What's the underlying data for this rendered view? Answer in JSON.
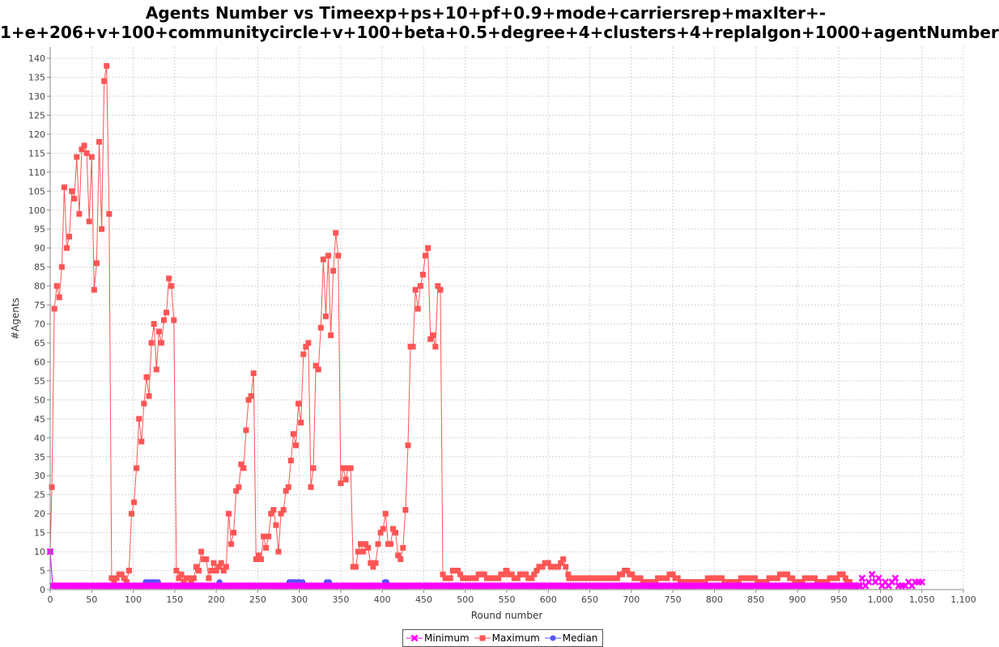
{
  "chart_data": {
    "type": "line",
    "title_line1": "Agents Number vs Timeexp+ps+10+pf+0.9+mode+carriersrep+maxIter+-",
    "title_line2": "1+e+206+v+100+communitycircle+v+100+beta+0.5+degree+4+clusters+4+replalgon+1000+agentNumber",
    "xlabel": "Round number",
    "ylabel": "#Agents",
    "xlim": [
      0,
      1100
    ],
    "ylim": [
      0,
      143
    ],
    "xticks": [
      0,
      50,
      100,
      150,
      200,
      250,
      300,
      350,
      400,
      450,
      500,
      550,
      600,
      650,
      700,
      750,
      800,
      850,
      900,
      950,
      1000,
      1050,
      1100
    ],
    "xtick_labels": [
      "0",
      "50",
      "100",
      "150",
      "200",
      "250",
      "300",
      "350",
      "400",
      "450",
      "500",
      "550",
      "600",
      "650",
      "700",
      "750",
      "800",
      "850",
      "900",
      "950",
      "1,000",
      "1,050",
      "1,100"
    ],
    "yticks": [
      0,
      5,
      10,
      15,
      20,
      25,
      30,
      35,
      40,
      45,
      50,
      55,
      60,
      65,
      70,
      75,
      80,
      85,
      90,
      95,
      100,
      105,
      110,
      115,
      120,
      125,
      130,
      135,
      140
    ],
    "grid": true,
    "legend_position": "bottom",
    "series": [
      {
        "name": "Minimum",
        "color": "#ff00ff",
        "marker": "x",
        "points": [
          [
            0,
            10
          ],
          [
            3,
            1
          ],
          [
            50,
            1
          ],
          [
            100,
            1
          ],
          [
            150,
            1
          ],
          [
            200,
            1
          ],
          [
            250,
            1
          ],
          [
            300,
            1
          ],
          [
            350,
            1
          ],
          [
            400,
            1
          ],
          [
            450,
            1
          ],
          [
            500,
            1
          ],
          [
            550,
            1
          ],
          [
            600,
            1
          ],
          [
            650,
            1
          ],
          [
            700,
            1
          ],
          [
            750,
            1
          ],
          [
            800,
            1
          ],
          [
            850,
            1
          ],
          [
            900,
            1
          ],
          [
            950,
            1
          ],
          [
            975,
            1
          ],
          [
            978,
            3
          ],
          [
            982,
            1
          ],
          [
            986,
            2
          ],
          [
            990,
            4
          ],
          [
            994,
            2
          ],
          [
            998,
            3
          ],
          [
            1002,
            1
          ],
          [
            1006,
            2
          ],
          [
            1010,
            1
          ],
          [
            1014,
            2
          ],
          [
            1018,
            3
          ],
          [
            1022,
            1
          ],
          [
            1026,
            1
          ],
          [
            1030,
            1
          ],
          [
            1034,
            2
          ],
          [
            1038,
            1
          ],
          [
            1042,
            2
          ],
          [
            1046,
            2
          ],
          [
            1050,
            2
          ]
        ]
      },
      {
        "name": "Maximum",
        "color": "#ff5555",
        "marker": "square",
        "points": [
          [
            0,
            10
          ],
          [
            2,
            27
          ],
          [
            5,
            74
          ],
          [
            8,
            80
          ],
          [
            11,
            77
          ],
          [
            14,
            85
          ],
          [
            17,
            106
          ],
          [
            20,
            90
          ],
          [
            23,
            93
          ],
          [
            26,
            105
          ],
          [
            29,
            103
          ],
          [
            32,
            114
          ],
          [
            35,
            99
          ],
          [
            38,
            116
          ],
          [
            41,
            117
          ],
          [
            44,
            115
          ],
          [
            47,
            97
          ],
          [
            50,
            114
          ],
          [
            53,
            79
          ],
          [
            56,
            86
          ],
          [
            59,
            118
          ],
          [
            62,
            95
          ],
          [
            65,
            134
          ],
          [
            68,
            138
          ],
          [
            71,
            99
          ],
          [
            74,
            3
          ],
          [
            77,
            2
          ],
          [
            80,
            3
          ],
          [
            83,
            4
          ],
          [
            86,
            4
          ],
          [
            89,
            3
          ],
          [
            92,
            2
          ],
          [
            95,
            5
          ],
          [
            98,
            20
          ],
          [
            101,
            23
          ],
          [
            104,
            32
          ],
          [
            107,
            45
          ],
          [
            110,
            39
          ],
          [
            113,
            49
          ],
          [
            116,
            56
          ],
          [
            119,
            51
          ],
          [
            122,
            65
          ],
          [
            125,
            70
          ],
          [
            128,
            58
          ],
          [
            131,
            68
          ],
          [
            134,
            65
          ],
          [
            137,
            71
          ],
          [
            140,
            73
          ],
          [
            143,
            82
          ],
          [
            146,
            80
          ],
          [
            149,
            71
          ],
          [
            152,
            5
          ],
          [
            155,
            3
          ],
          [
            158,
            4
          ],
          [
            161,
            2
          ],
          [
            164,
            3
          ],
          [
            167,
            3
          ],
          [
            170,
            2
          ],
          [
            173,
            3
          ],
          [
            176,
            6
          ],
          [
            179,
            5
          ],
          [
            182,
            10
          ],
          [
            185,
            8
          ],
          [
            188,
            8
          ],
          [
            191,
            3
          ],
          [
            194,
            5
          ],
          [
            197,
            7
          ],
          [
            200,
            5
          ],
          [
            203,
            6
          ],
          [
            206,
            7
          ],
          [
            209,
            5
          ],
          [
            212,
            6
          ],
          [
            215,
            20
          ],
          [
            218,
            12
          ],
          [
            221,
            15
          ],
          [
            224,
            26
          ],
          [
            227,
            27
          ],
          [
            230,
            33
          ],
          [
            233,
            32
          ],
          [
            236,
            42
          ],
          [
            239,
            50
          ],
          [
            242,
            51
          ],
          [
            245,
            57
          ],
          [
            248,
            8
          ],
          [
            251,
            9
          ],
          [
            254,
            8
          ],
          [
            257,
            14
          ],
          [
            260,
            11
          ],
          [
            263,
            14
          ],
          [
            266,
            20
          ],
          [
            269,
            21
          ],
          [
            272,
            17
          ],
          [
            275,
            10
          ],
          [
            278,
            20
          ],
          [
            281,
            21
          ],
          [
            284,
            26
          ],
          [
            287,
            27
          ],
          [
            290,
            34
          ],
          [
            293,
            41
          ],
          [
            296,
            38
          ],
          [
            299,
            49
          ],
          [
            302,
            44
          ],
          [
            305,
            62
          ],
          [
            308,
            64
          ],
          [
            311,
            65
          ],
          [
            314,
            27
          ],
          [
            317,
            32
          ],
          [
            320,
            59
          ],
          [
            323,
            58
          ],
          [
            326,
            69
          ],
          [
            329,
            87
          ],
          [
            332,
            72
          ],
          [
            335,
            88
          ],
          [
            338,
            67
          ],
          [
            341,
            84
          ],
          [
            344,
            94
          ],
          [
            347,
            88
          ],
          [
            350,
            28
          ],
          [
            353,
            32
          ],
          [
            356,
            29
          ],
          [
            359,
            32
          ],
          [
            362,
            32
          ],
          [
            365,
            6
          ],
          [
            368,
            6
          ],
          [
            371,
            10
          ],
          [
            374,
            12
          ],
          [
            377,
            10
          ],
          [
            380,
            12
          ],
          [
            383,
            11
          ],
          [
            386,
            7
          ],
          [
            389,
            6
          ],
          [
            392,
            7
          ],
          [
            395,
            12
          ],
          [
            398,
            15
          ],
          [
            401,
            16
          ],
          [
            404,
            20
          ],
          [
            407,
            12
          ],
          [
            410,
            12
          ],
          [
            413,
            16
          ],
          [
            416,
            15
          ],
          [
            419,
            9
          ],
          [
            422,
            8
          ],
          [
            425,
            11
          ],
          [
            428,
            21
          ],
          [
            431,
            38
          ],
          [
            434,
            64
          ],
          [
            437,
            64
          ],
          [
            440,
            79
          ],
          [
            443,
            74
          ],
          [
            446,
            80
          ],
          [
            449,
            83
          ],
          [
            452,
            88
          ],
          [
            455,
            90
          ],
          [
            458,
            66
          ],
          [
            461,
            67
          ],
          [
            464,
            64
          ],
          [
            467,
            80
          ],
          [
            470,
            79
          ],
          [
            473,
            4
          ],
          [
            476,
            3
          ],
          [
            479,
            3
          ],
          [
            482,
            3
          ],
          [
            485,
            5
          ],
          [
            488,
            5
          ],
          [
            491,
            5
          ],
          [
            494,
            4
          ],
          [
            497,
            3
          ],
          [
            500,
            3
          ],
          [
            510,
            3
          ],
          [
            520,
            4
          ],
          [
            530,
            3
          ],
          [
            540,
            3
          ],
          [
            550,
            5
          ],
          [
            560,
            3
          ],
          [
            570,
            4
          ],
          [
            580,
            3
          ],
          [
            590,
            6
          ],
          [
            600,
            7
          ],
          [
            605,
            6
          ],
          [
            612,
            6
          ],
          [
            618,
            8
          ],
          [
            625,
            3
          ],
          [
            640,
            3
          ],
          [
            660,
            3
          ],
          [
            680,
            3
          ],
          [
            695,
            5
          ],
          [
            705,
            3
          ],
          [
            720,
            2
          ],
          [
            740,
            3
          ],
          [
            750,
            4
          ],
          [
            760,
            2
          ],
          [
            780,
            2
          ],
          [
            800,
            3
          ],
          [
            820,
            2
          ],
          [
            840,
            3
          ],
          [
            860,
            2
          ],
          [
            870,
            3
          ],
          [
            885,
            4
          ],
          [
            900,
            2
          ],
          [
            915,
            3
          ],
          [
            930,
            2
          ],
          [
            945,
            3
          ],
          [
            955,
            4
          ],
          [
            960,
            2
          ],
          [
            970,
            1
          ]
        ]
      },
      {
        "name": "Median",
        "color": "#5555ff",
        "marker": "circle",
        "points": [
          [
            0,
            10
          ],
          [
            3,
            1
          ],
          [
            50,
            1
          ],
          [
            100,
            1
          ],
          [
            130,
            2
          ],
          [
            133,
            1
          ],
          [
            200,
            1
          ],
          [
            204,
            2
          ],
          [
            207,
            1
          ],
          [
            250,
            1
          ],
          [
            285,
            1
          ],
          [
            290,
            2
          ],
          [
            295,
            2
          ],
          [
            300,
            2
          ],
          [
            304,
            2
          ],
          [
            308,
            1
          ],
          [
            330,
            1
          ],
          [
            336,
            2
          ],
          [
            340,
            1
          ],
          [
            400,
            1
          ],
          [
            405,
            2
          ],
          [
            410,
            1
          ],
          [
            500,
            1
          ],
          [
            600,
            1
          ],
          [
            700,
            1
          ],
          [
            800,
            1
          ],
          [
            900,
            1
          ],
          [
            975,
            1
          ]
        ]
      }
    ]
  }
}
